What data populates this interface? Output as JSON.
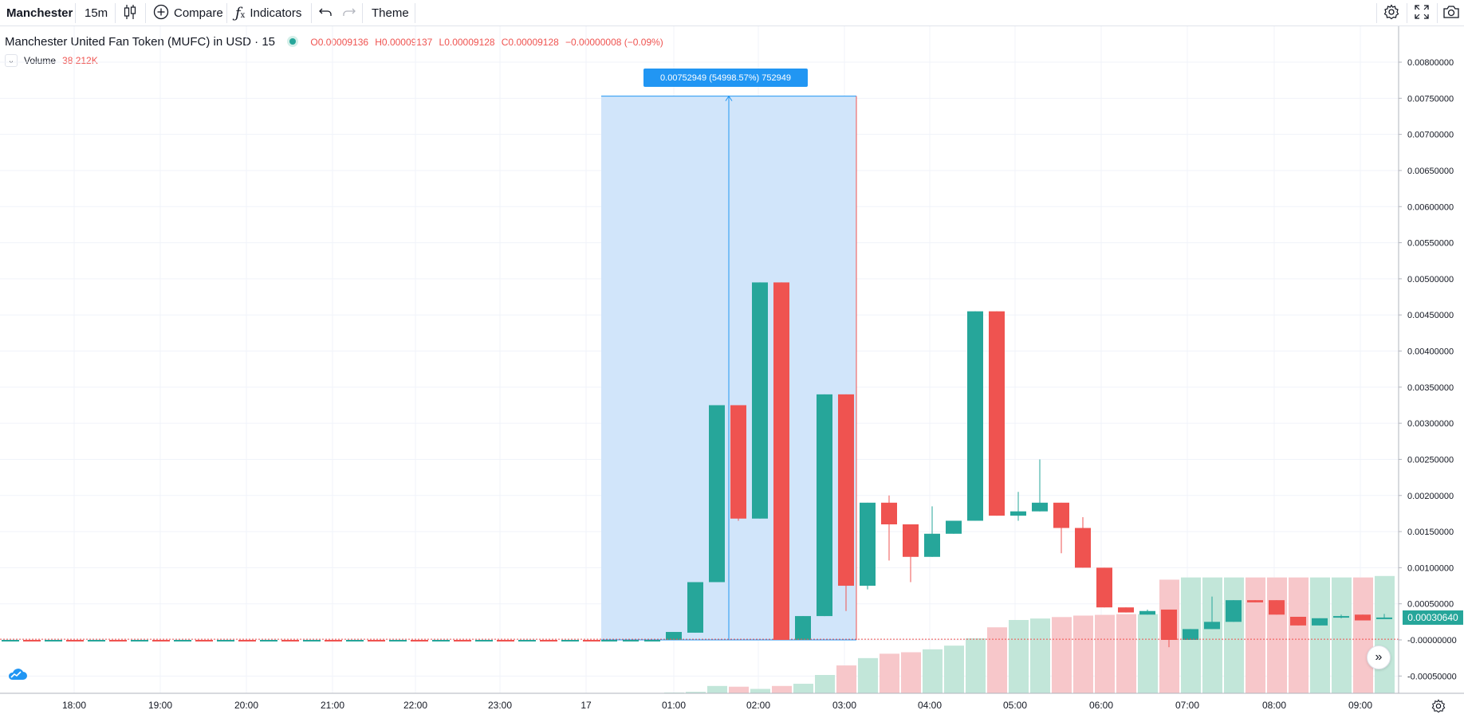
{
  "toolbar": {
    "symbol": "Manchester",
    "interval": "15m",
    "compare_label": "Compare",
    "indicators_label": "Indicators",
    "theme_label": "Theme",
    "icons": [
      "candles-icon",
      "plus-circle-icon",
      "function-icon",
      "undo-icon",
      "redo-icon",
      "gear-icon",
      "fullscreen-icon",
      "camera-icon"
    ]
  },
  "legend": {
    "title": "Manchester United Fan Token (MUFC) in USD · 15",
    "open": "O0.00009136",
    "high": "H0.00009137",
    "low": "L0.00009128",
    "close": "C0.00009128",
    "change": "−0.00000008 (−0.09%)",
    "volume_label": "Volume",
    "volume_value": "38.212K"
  },
  "measure": {
    "label": "0.00752949 (54998.57%) 752949"
  },
  "last_price": "0.00030640",
  "colors": {
    "up": "#26a69a",
    "down": "#ef5350",
    "vol_up": "#c2e6d9",
    "vol_down": "#f7c7ca",
    "measure_fill": "#cfe4fa",
    "measure_line": "#2196f3"
  },
  "chart_data": {
    "type": "candlestick",
    "y_ticks": [
      "0.00800000",
      "0.00750000",
      "0.00700000",
      "0.00650000",
      "0.00600000",
      "0.00550000",
      "0.00500000",
      "0.00450000",
      "0.00400000",
      "0.00350000",
      "0.00300000",
      "0.00250000",
      "0.00200000",
      "0.00150000",
      "0.00100000",
      "0.00050000",
      "-0.00000000",
      "-0.00050000"
    ],
    "x_ticks": [
      "18:00",
      "19:00",
      "20:00",
      "21:00",
      "22:00",
      "23:00",
      "17",
      "01:00",
      "02:00",
      "03:00",
      "04:00",
      "05:00",
      "06:00",
      "07:00",
      "08:00",
      "09:00"
    ],
    "ylim": [
      -0.0007,
      0.0085
    ],
    "candles": [
      {
        "t": "00:15",
        "o": 0.0,
        "h": 0.0,
        "l": 0.0,
        "c": 0.0
      },
      {
        "t": "00:30",
        "o": 0.0,
        "h": 0.0,
        "l": 0.0,
        "c": 0.0
      },
      {
        "t": "00:45",
        "o": 0.0,
        "h": 0.0,
        "l": 0.0,
        "c": 0.0
      },
      {
        "t": "01:00",
        "o": 0.0,
        "h": 0.00011,
        "l": 0.0,
        "c": 0.00011
      },
      {
        "t": "01:15",
        "o": 0.0001,
        "h": 0.0008,
        "l": 0.0001,
        "c": 0.0008
      },
      {
        "t": "01:30",
        "o": 0.0008,
        "h": 0.00325,
        "l": 0.0008,
        "c": 0.00325
      },
      {
        "t": "01:45",
        "o": 0.00325,
        "h": 0.00325,
        "l": 0.00165,
        "c": 0.00168
      },
      {
        "t": "02:00",
        "o": 0.00168,
        "h": 0.00495,
        "l": 0.00168,
        "c": 0.00495
      },
      {
        "t": "02:15",
        "o": 0.00495,
        "h": 0.00495,
        "l": 0.0,
        "c": 0.0
      },
      {
        "t": "02:30",
        "o": 0.0,
        "h": 0.00033,
        "l": 0.0,
        "c": 0.00033
      },
      {
        "t": "02:45",
        "o": 0.00033,
        "h": 0.0034,
        "l": 0.00033,
        "c": 0.0034
      },
      {
        "t": "03:00",
        "o": 0.0034,
        "h": 0.0034,
        "l": 0.0004,
        "c": 0.00075
      },
      {
        "t": "03:15",
        "o": 0.00075,
        "h": 0.0019,
        "l": 0.0007,
        "c": 0.0019
      },
      {
        "t": "03:30",
        "o": 0.0019,
        "h": 0.002,
        "l": 0.0011,
        "c": 0.0016
      },
      {
        "t": "03:45",
        "o": 0.0016,
        "h": 0.0016,
        "l": 0.0008,
        "c": 0.00115
      },
      {
        "t": "04:00",
        "o": 0.00115,
        "h": 0.00185,
        "l": 0.00115,
        "c": 0.00147
      },
      {
        "t": "04:15",
        "o": 0.00147,
        "h": 0.00165,
        "l": 0.00147,
        "c": 0.00165
      },
      {
        "t": "04:30",
        "o": 0.00165,
        "h": 0.00455,
        "l": 0.00165,
        "c": 0.00455
      },
      {
        "t": "04:45",
        "o": 0.00455,
        "h": 0.00455,
        "l": 0.00172,
        "c": 0.00172
      },
      {
        "t": "05:00",
        "o": 0.00172,
        "h": 0.00205,
        "l": 0.00165,
        "c": 0.00178
      },
      {
        "t": "05:15",
        "o": 0.00178,
        "h": 0.0025,
        "l": 0.00178,
        "c": 0.0019
      },
      {
        "t": "05:30",
        "o": 0.0019,
        "h": 0.0019,
        "l": 0.0012,
        "c": 0.00155
      },
      {
        "t": "05:45",
        "o": 0.00155,
        "h": 0.0017,
        "l": 0.001,
        "c": 0.001
      },
      {
        "t": "06:00",
        "o": 0.001,
        "h": 0.001,
        "l": 0.00045,
        "c": 0.00045
      },
      {
        "t": "06:15",
        "o": 0.00045,
        "h": 0.00045,
        "l": 0.00038,
        "c": 0.00038
      },
      {
        "t": "06:30",
        "o": 0.00035,
        "h": 0.00042,
        "l": 0.00035,
        "c": 0.0004
      },
      {
        "t": "06:45",
        "o": 0.00042,
        "h": 0.00042,
        "l": -0.0001,
        "c": 0.0
      },
      {
        "t": "07:00",
        "o": 0.0,
        "h": 0.00015,
        "l": 0.0,
        "c": 0.00015
      },
      {
        "t": "07:15",
        "o": 0.00015,
        "h": 0.0006,
        "l": 0.00015,
        "c": 0.00025
      },
      {
        "t": "07:30",
        "o": 0.00025,
        "h": 0.00055,
        "l": 0.00025,
        "c": 0.00055
      },
      {
        "t": "07:45",
        "o": 0.00055,
        "h": 0.00055,
        "l": 0.00052,
        "c": 0.00052
      },
      {
        "t": "08:00",
        "o": 0.00055,
        "h": 0.00055,
        "l": 0.00035,
        "c": 0.00035
      },
      {
        "t": "08:15",
        "o": 0.00032,
        "h": 0.00032,
        "l": 0.0002,
        "c": 0.0002
      },
      {
        "t": "08:30",
        "o": 0.0002,
        "h": 0.0003,
        "l": 0.0002,
        "c": 0.0003
      },
      {
        "t": "08:45",
        "o": 0.00032,
        "h": 0.00035,
        "l": 0.0003,
        "c": 0.00033
      },
      {
        "t": "09:00",
        "o": 0.00035,
        "h": 0.00035,
        "l": 0.00027,
        "c": 0.00027
      },
      {
        "t": "09:15",
        "o": 0.0003,
        "h": 0.00036,
        "l": 0.0003,
        "c": 0.00031
      }
    ],
    "volume_relative": [
      0,
      0,
      0,
      0.01,
      0.02,
      0.1,
      0.09,
      0.06,
      0.1,
      0.13,
      0.25,
      0.38,
      0.48,
      0.54,
      0.56,
      0.6,
      0.65,
      0.75,
      0.9,
      1.0,
      1.02,
      1.04,
      1.06,
      1.07,
      1.08,
      1.08,
      1.55,
      1.58,
      1.58,
      1.58,
      1.58,
      1.58,
      1.58,
      1.58,
      1.58,
      1.58,
      1.6
    ],
    "measure_range": {
      "from_t": "00:15",
      "to_t": "03:00",
      "price_from": 0.0,
      "price_to": 0.00752949
    }
  }
}
